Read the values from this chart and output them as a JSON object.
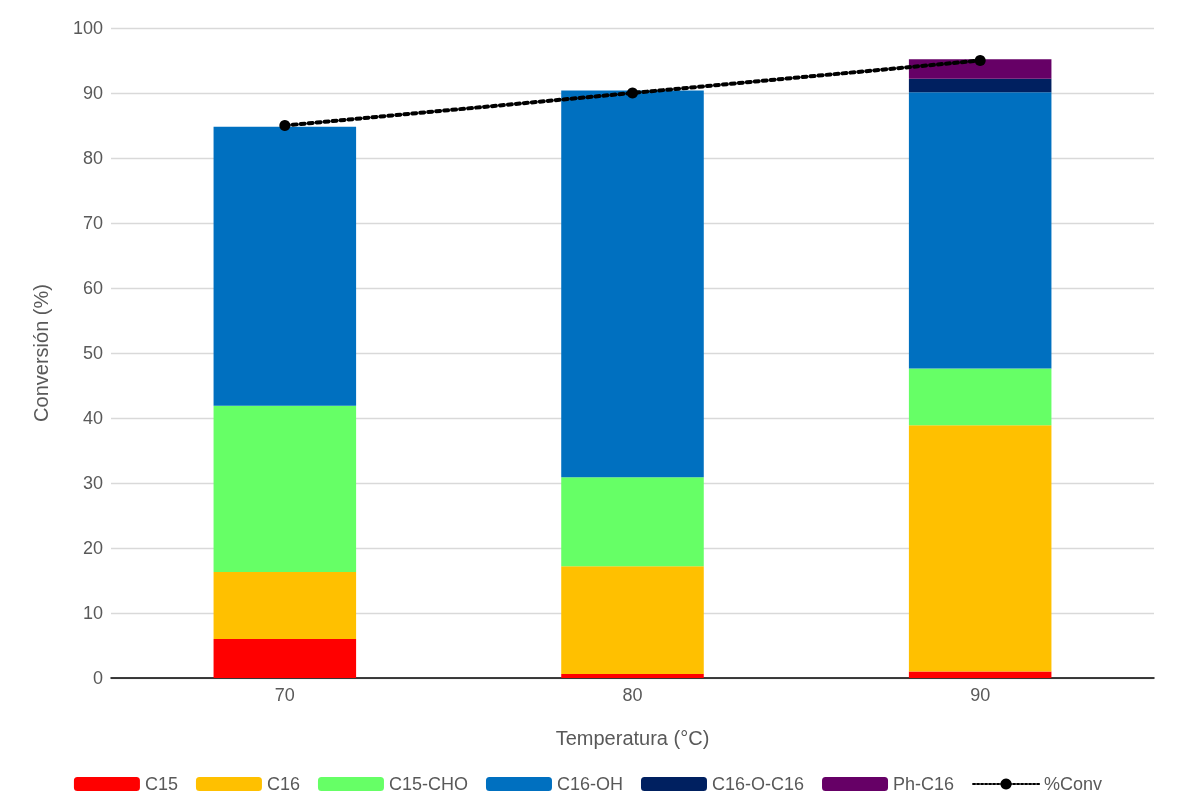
{
  "chart_data": {
    "type": "bar",
    "stacked": true,
    "xlabel": "Temperatura (°C)",
    "ylabel": "Conversión (%)",
    "categories": [
      "70",
      "80",
      "90"
    ],
    "ylim": [
      0,
      100
    ],
    "yticks": [
      0,
      10,
      20,
      30,
      40,
      50,
      60,
      70,
      80,
      90,
      100
    ],
    "grid": "y",
    "legend": "bottom",
    "series": [
      {
        "name": "C15",
        "color": "#ff0000",
        "values": [
          6.0,
          0.6,
          1.0
        ]
      },
      {
        "name": "C16",
        "color": "#ffc000",
        "values": [
          10.3,
          16.6,
          37.9
        ]
      },
      {
        "name": "C15-CHO",
        "color": "#66ff66",
        "values": [
          25.6,
          13.7,
          8.7
        ]
      },
      {
        "name": "C16-OH",
        "color": "#0070c0",
        "values": [
          42.9,
          59.5,
          42.5
        ]
      },
      {
        "name": "C16-O-C16",
        "color": "#002060",
        "values": [
          0,
          0,
          2.1
        ]
      },
      {
        "name": "Ph-C16",
        "color": "#660066",
        "values": [
          0,
          0,
          3.0
        ]
      },
      {
        "name": "%Conv",
        "type": "line",
        "color": "#000000",
        "values": [
          85,
          90,
          95
        ],
        "marker": "circle",
        "line_style": "dotted"
      }
    ]
  }
}
